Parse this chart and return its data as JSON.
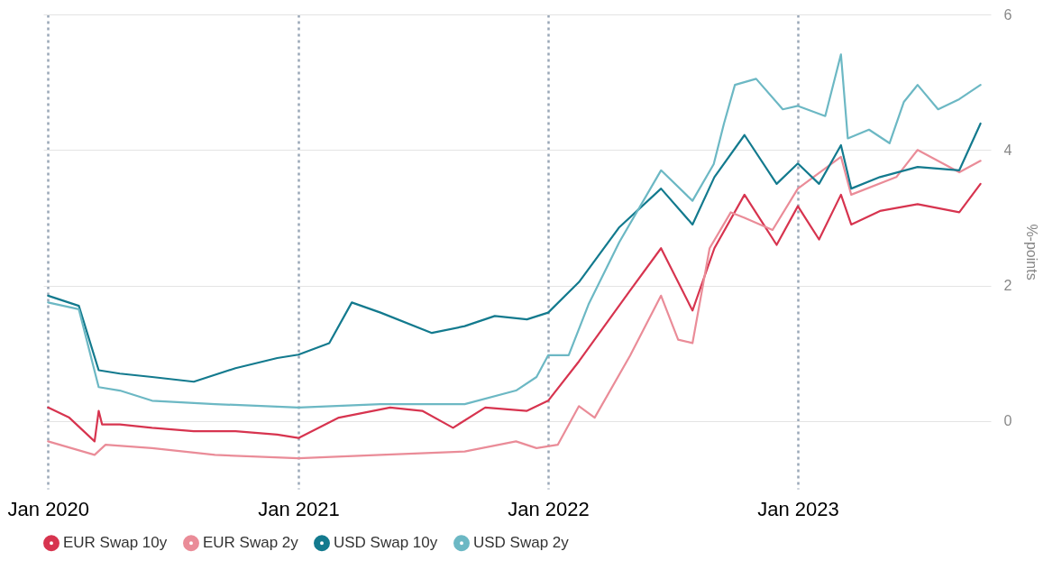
{
  "chart_data": {
    "type": "line",
    "ylabel": "%-points",
    "xlim": [
      "2019-12-25",
      "2023-10-10"
    ],
    "ylim": [
      -1,
      6
    ],
    "yticks": [
      0,
      2,
      4,
      6
    ],
    "xticks": [
      {
        "value": "2020-01-01",
        "label": "Jan 2020"
      },
      {
        "value": "2021-01-01",
        "label": "Jan 2021"
      },
      {
        "value": "2022-01-01",
        "label": "Jan 2022"
      },
      {
        "value": "2023-01-01",
        "label": "Jan 2023"
      }
    ],
    "grid": true,
    "legend": "bottom",
    "marker": "none",
    "line_style": "solid",
    "series": [
      {
        "name": "EUR Swap 10y",
        "color": "#d7344f",
        "x": [
          "2020-01-01",
          "2020-02-01",
          "2020-03-09",
          "2020-03-15",
          "2020-03-20",
          "2020-04-15",
          "2020-06-01",
          "2020-08-01",
          "2020-10-01",
          "2020-12-01",
          "2021-01-01",
          "2021-03-01",
          "2021-05-15",
          "2021-07-01",
          "2021-08-15",
          "2021-10-01",
          "2021-12-01",
          "2022-01-01",
          "2022-02-15",
          "2022-05-01",
          "2022-06-15",
          "2022-07-31",
          "2022-09-01",
          "2022-10-15",
          "2022-12-01",
          "2023-01-01",
          "2023-02-01",
          "2023-03-05",
          "2023-03-20",
          "2023-05-01",
          "2023-06-25",
          "2023-08-25",
          "2023-09-25"
        ],
        "values": [
          0.2,
          0.05,
          -0.3,
          0.15,
          -0.05,
          -0.05,
          -0.1,
          -0.15,
          -0.15,
          -0.2,
          -0.25,
          0.05,
          0.2,
          0.15,
          -0.1,
          0.2,
          0.15,
          0.3,
          0.88,
          1.93,
          2.55,
          1.63,
          2.55,
          3.34,
          2.6,
          3.17,
          2.68,
          3.34,
          2.9,
          3.1,
          3.2,
          3.08,
          3.5
        ]
      },
      {
        "name": "EUR Swap 2y",
        "color": "#ea8c98",
        "x": [
          "2020-01-01",
          "2020-03-09",
          "2020-03-25",
          "2020-06-01",
          "2020-09-01",
          "2021-01-01",
          "2021-05-01",
          "2021-09-01",
          "2021-11-15",
          "2021-12-15",
          "2022-01-15",
          "2022-02-15",
          "2022-03-10",
          "2022-05-01",
          "2022-06-15",
          "2022-07-10",
          "2022-07-31",
          "2022-08-25",
          "2022-09-25",
          "2022-10-15",
          "2022-11-25",
          "2023-01-01",
          "2023-03-05",
          "2023-03-20",
          "2023-05-25",
          "2023-06-25",
          "2023-08-25",
          "2023-09-25"
        ],
        "values": [
          -0.3,
          -0.5,
          -0.35,
          -0.4,
          -0.5,
          -0.55,
          -0.5,
          -0.45,
          -0.3,
          -0.4,
          -0.35,
          0.22,
          0.05,
          0.97,
          1.85,
          1.2,
          1.15,
          2.55,
          3.08,
          3.0,
          2.82,
          3.43,
          3.9,
          3.34,
          3.6,
          4.0,
          3.67,
          3.84
        ]
      },
      {
        "name": "USD Swap 10y",
        "color": "#137a8e",
        "x": [
          "2020-01-01",
          "2020-02-15",
          "2020-03-15",
          "2020-04-15",
          "2020-06-01",
          "2020-08-01",
          "2020-10-01",
          "2020-12-01",
          "2021-01-01",
          "2021-02-15",
          "2021-03-20",
          "2021-05-01",
          "2021-07-15",
          "2021-09-01",
          "2021-10-15",
          "2021-12-01",
          "2022-01-01",
          "2022-02-15",
          "2022-04-15",
          "2022-06-15",
          "2022-07-31",
          "2022-09-01",
          "2022-10-15",
          "2022-12-01",
          "2023-01-01",
          "2023-02-01",
          "2023-03-05",
          "2023-03-20",
          "2023-05-01",
          "2023-06-25",
          "2023-08-25",
          "2023-09-25"
        ],
        "values": [
          1.85,
          1.7,
          0.75,
          0.7,
          0.65,
          0.58,
          0.78,
          0.93,
          0.98,
          1.15,
          1.75,
          1.6,
          1.3,
          1.4,
          1.55,
          1.5,
          1.6,
          2.05,
          2.86,
          3.43,
          2.9,
          3.6,
          4.22,
          3.5,
          3.8,
          3.5,
          4.07,
          3.43,
          3.6,
          3.75,
          3.7,
          4.39
        ]
      },
      {
        "name": "USD Swap 2y",
        "color": "#6cb8c4",
        "x": [
          "2020-01-01",
          "2020-02-15",
          "2020-03-15",
          "2020-04-15",
          "2020-06-01",
          "2020-09-01",
          "2021-01-01",
          "2021-05-01",
          "2021-09-01",
          "2021-11-15",
          "2021-12-15",
          "2022-01-01",
          "2022-01-31",
          "2022-03-01",
          "2022-04-15",
          "2022-06-15",
          "2022-07-31",
          "2022-08-31",
          "2022-09-15",
          "2022-10-01",
          "2022-11-01",
          "2022-12-10",
          "2023-01-01",
          "2023-02-10",
          "2023-03-05",
          "2023-03-15",
          "2023-04-15",
          "2023-05-15",
          "2023-06-05",
          "2023-06-25",
          "2023-07-25",
          "2023-08-25",
          "2023-09-25"
        ],
        "values": [
          1.75,
          1.65,
          0.5,
          0.45,
          0.3,
          0.25,
          0.2,
          0.25,
          0.25,
          0.45,
          0.65,
          0.97,
          0.97,
          1.72,
          2.64,
          3.7,
          3.25,
          3.79,
          4.39,
          4.96,
          5.05,
          4.6,
          4.65,
          4.5,
          5.41,
          4.17,
          4.3,
          4.1,
          4.71,
          4.96,
          4.6,
          4.75,
          4.96
        ]
      }
    ]
  }
}
